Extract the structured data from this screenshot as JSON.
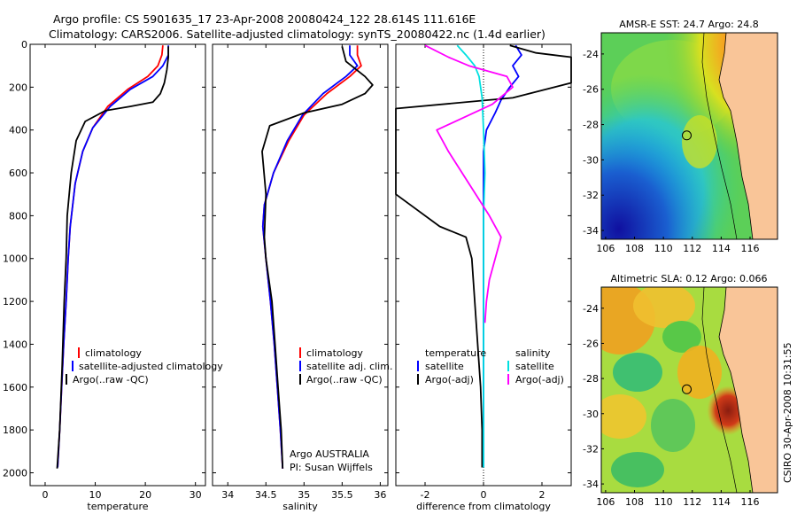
{
  "header": {
    "title_line1": "Argo profile: CS 5901635_17 23-Apr-2008 20080424_122 28.614S 111.616E",
    "title_line2": "Climatology: CARS2006. Satellite-adjusted climatology: synTS_20080422.nc (1.4d earlier)"
  },
  "side_label": "CSIRO 30-Apr-2008 10:31:55",
  "colors": {
    "climatology": "#ff0000",
    "satellite": "#0000ff",
    "argo": "#000000",
    "salinity_clim": "#00e0e0",
    "salinity_argo": "#ff00ff",
    "land": "#f9c598"
  },
  "chart_data": [
    {
      "type": "line",
      "xlabel": "temperature",
      "ylabel": "",
      "xlim": [
        -3,
        32
      ],
      "ylim": [
        2060,
        0
      ],
      "xticks": [
        0,
        10,
        20,
        30
      ],
      "yticks": [
        0,
        200,
        400,
        600,
        800,
        1000,
        1200,
        1400,
        1600,
        1800,
        2000
      ],
      "series": [
        {
          "name": "climatology",
          "color": "#ff0000",
          "x": [
            23.5,
            23.3,
            22.5,
            20.5,
            16.5,
            12.5,
            9.5,
            7.5,
            6.0,
            5.0,
            4.6,
            4.2,
            3.7,
            3.3,
            2.9,
            2.5
          ],
          "y": [
            5,
            50,
            100,
            150,
            210,
            290,
            390,
            500,
            650,
            850,
            1000,
            1200,
            1400,
            1600,
            1800,
            1975
          ]
        },
        {
          "name": "satellite-adjusted climatology",
          "color": "#0000ff",
          "x": [
            24.6,
            24.6,
            23.5,
            21.5,
            17.0,
            13.0,
            9.5,
            7.5,
            6.0,
            5.0,
            4.6,
            4.2,
            3.7,
            3.3,
            2.9,
            2.5
          ],
          "y": [
            5,
            50,
            100,
            150,
            210,
            290,
            390,
            500,
            650,
            850,
            1000,
            1200,
            1400,
            1600,
            1800,
            1975
          ]
        },
        {
          "name": "Argo(..raw -QC)",
          "color": "#000000",
          "x": [
            24.6,
            24.6,
            24.3,
            23.8,
            23.0,
            21.5,
            17.0,
            12.0,
            8.0,
            6.2,
            5.2,
            4.4,
            4.2,
            3.8,
            3.4,
            2.9,
            2.4
          ],
          "y": [
            10,
            60,
            120,
            180,
            230,
            270,
            290,
            310,
            360,
            450,
            600,
            800,
            1000,
            1200,
            1500,
            1800,
            1980
          ]
        }
      ],
      "legend": [
        "climatology",
        "satellite-adjusted climatology",
        "Argo(..raw -QC)"
      ]
    },
    {
      "type": "line",
      "xlabel": "salinity",
      "ylabel": "",
      "xlim": [
        33.8,
        36.1
      ],
      "ylim": [
        2060,
        0
      ],
      "xticks": [
        34,
        34.5,
        35,
        35.5,
        36
      ],
      "series": [
        {
          "name": "climatology",
          "color": "#ff0000",
          "x": [
            35.7,
            35.7,
            35.75,
            35.6,
            35.3,
            35.0,
            34.8,
            34.6,
            34.48,
            34.46,
            34.5,
            34.56,
            34.61,
            34.65,
            34.69,
            34.72
          ],
          "y": [
            5,
            50,
            100,
            150,
            230,
            330,
            450,
            600,
            750,
            850,
            1000,
            1200,
            1400,
            1600,
            1800,
            1980
          ]
        },
        {
          "name": "satellite adj. clim.",
          "color": "#0000ff",
          "x": [
            35.6,
            35.6,
            35.7,
            35.55,
            35.25,
            34.98,
            34.78,
            34.6,
            34.48,
            34.46,
            34.5,
            34.56,
            34.61,
            34.65,
            34.69,
            34.72
          ],
          "y": [
            5,
            50,
            100,
            150,
            230,
            330,
            450,
            600,
            750,
            850,
            1000,
            1200,
            1400,
            1600,
            1800,
            1980
          ]
        },
        {
          "name": "Argo(..raw -QC)",
          "color": "#000000",
          "x": [
            35.5,
            35.55,
            35.8,
            35.9,
            35.8,
            35.5,
            35.0,
            34.55,
            34.45,
            34.5,
            34.48,
            34.5,
            34.58,
            34.62,
            34.66,
            34.7,
            34.72
          ],
          "y": [
            10,
            80,
            150,
            190,
            230,
            280,
            320,
            380,
            500,
            700,
            900,
            1000,
            1200,
            1400,
            1600,
            1800,
            1980
          ]
        }
      ],
      "legend": [
        "climatology",
        "satellite adj. clim.",
        "Argo(..raw -QC)"
      ],
      "annotation": [
        "Argo AUSTRALIA",
        "PI: Susan Wijffels"
      ]
    },
    {
      "type": "line",
      "xlabel": "difference from climatology",
      "ylabel": "",
      "xlim": [
        -3,
        3
      ],
      "ylim": [
        2060,
        0
      ],
      "xticks": [
        -2,
        0,
        2
      ],
      "series": [
        {
          "name": "temperature satellite",
          "color": "#0000ff",
          "x": [
            1.1,
            1.3,
            1.0,
            1.2,
            0.9,
            0.6,
            0.4,
            0.1,
            0.0,
            0.0,
            0.0,
            0.0,
            0.0,
            0.0
          ],
          "y": [
            5,
            50,
            100,
            150,
            200,
            260,
            320,
            400,
            500,
            700,
            1000,
            1400,
            1700,
            1975
          ]
        },
        {
          "name": "temperature Argo(-adj)",
          "color": "#000000",
          "x": [
            0.9,
            1.8,
            3.0,
            3.0,
            1.0,
            -3.0,
            -3.0,
            -3.0,
            -1.5,
            -0.6,
            -0.4,
            -0.3,
            -0.2,
            -0.1,
            -0.05,
            -0.05
          ],
          "y": [
            5,
            40,
            60,
            180,
            250,
            300,
            320,
            700,
            850,
            900,
            1000,
            1200,
            1400,
            1600,
            1800,
            1975
          ]
        },
        {
          "name": "salinity satellite",
          "color": "#00e0e0",
          "x": [
            -0.9,
            -0.6,
            -0.3,
            -0.15,
            -0.05,
            0.0,
            0.05,
            0.0,
            0.0,
            0.0,
            0.0,
            0.0,
            0.0
          ],
          "y": [
            5,
            50,
            100,
            150,
            250,
            400,
            600,
            800,
            1000,
            1200,
            1500,
            1800,
            1975
          ]
        },
        {
          "name": "salinity Argo(-adj)",
          "color": "#ff00ff",
          "x": [
            -2.0,
            -1.2,
            -0.5,
            0.8,
            1.0,
            0.3,
            -1.6,
            -1.2,
            -0.5,
            0.2,
            0.6,
            0.4,
            0.2,
            0.1,
            0.05
          ],
          "y": [
            5,
            60,
            100,
            150,
            200,
            280,
            400,
            500,
            650,
            800,
            900,
            1000,
            1100,
            1200,
            1300
          ]
        }
      ],
      "legend_left": [
        "temperature",
        "satellite",
        "Argo(-adj)"
      ],
      "legend_right": [
        "salinity",
        "satellite",
        "Argo(-adj)"
      ]
    }
  ],
  "maps": [
    {
      "title": "AMSR-E SST: 24.7 Argo: 24.8",
      "xticks": [
        106,
        108,
        110,
        112,
        114,
        116
      ],
      "yticks": [
        -24,
        -26,
        -28,
        -30,
        -32,
        -34
      ],
      "xlim": [
        105.7,
        117.9
      ],
      "ylim": [
        -34.5,
        -22.8
      ],
      "profile_lon": 111.616,
      "profile_lat": -28.614
    },
    {
      "title": "Altimetric SLA: 0.12 Argo: 0.066",
      "xticks": [
        106,
        108,
        110,
        112,
        114,
        116
      ],
      "yticks": [
        -24,
        -26,
        -28,
        -30,
        -32,
        -34
      ],
      "xlim": [
        105.7,
        117.9
      ],
      "ylim": [
        -34.5,
        -22.8
      ],
      "profile_lon": 111.616,
      "profile_lat": -28.614
    }
  ]
}
